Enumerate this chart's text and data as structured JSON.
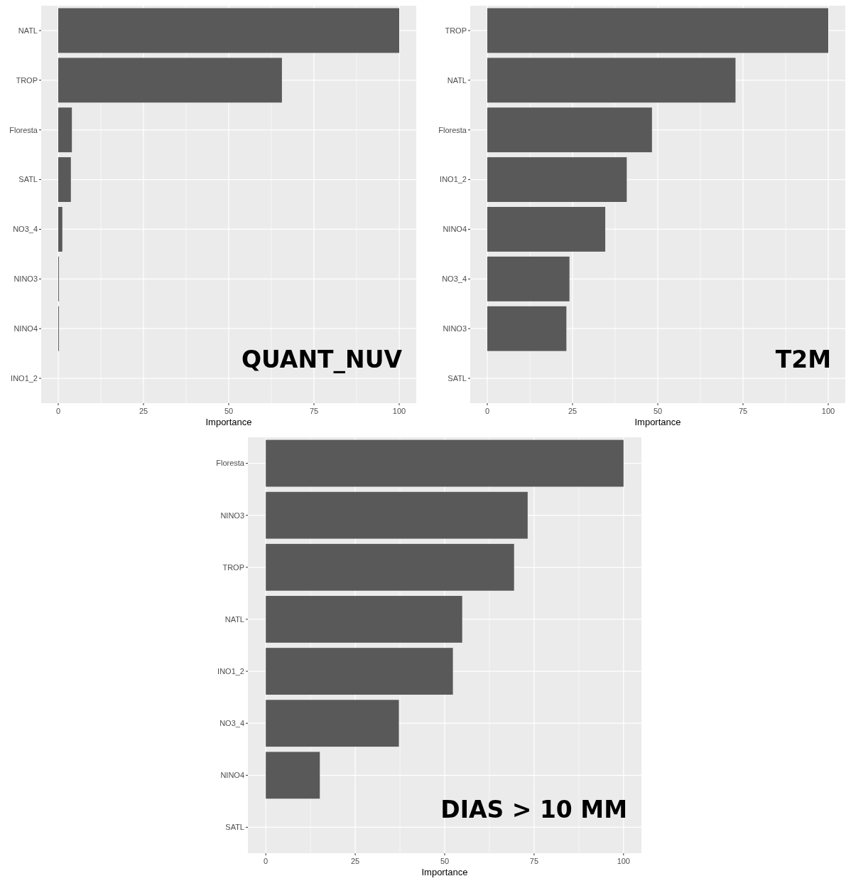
{
  "chart_data": [
    {
      "type": "bar",
      "orientation": "horizontal",
      "title": "QUANT_NUV",
      "xlabel": "Importance",
      "categories": [
        "NATL",
        "TROP",
        "Floresta",
        "SATL",
        "NO3_4",
        "NINO3",
        "NINO4",
        "INO1_2"
      ],
      "values": [
        100,
        65.6,
        4.0,
        3.7,
        1.2,
        0.2,
        0.2,
        0
      ],
      "color": "#595959",
      "xlim": [
        -5,
        105
      ],
      "xticks": [
        0,
        25,
        50,
        75,
        100
      ],
      "grid": true
    },
    {
      "type": "bar",
      "orientation": "horizontal",
      "title": "T2M",
      "xlabel": "Importance",
      "categories": [
        "TROP",
        "NATL",
        "Floresta",
        "INO1_2",
        "NINO4",
        "NO3_4",
        "NINO3",
        "SATL"
      ],
      "values": [
        100,
        72.8,
        48.3,
        40.9,
        34.6,
        24.1,
        23.2,
        0
      ],
      "color": "#595959",
      "xlim": [
        -5,
        105
      ],
      "xticks": [
        0,
        25,
        50,
        75,
        100
      ],
      "grid": true
    },
    {
      "type": "bar",
      "orientation": "horizontal",
      "title": "DIAS > 10 MM",
      "xlabel": "Importance",
      "categories": [
        "Floresta",
        "NINO3",
        "TROP",
        "NATL",
        "INO1_2",
        "NO3_4",
        "NINO4",
        "SATL"
      ],
      "values": [
        100,
        73.2,
        69.4,
        54.9,
        52.3,
        37.2,
        15.1,
        0
      ],
      "color": "#595959",
      "xlim": [
        -5,
        105
      ],
      "xticks": [
        0,
        25,
        50,
        75,
        100
      ],
      "grid": true
    }
  ]
}
